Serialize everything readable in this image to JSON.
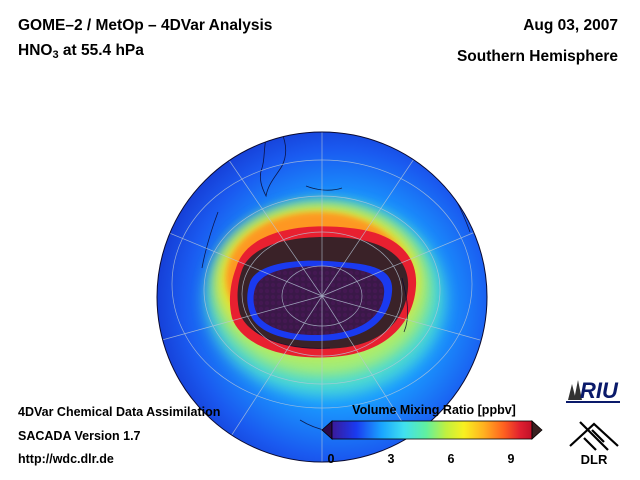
{
  "header": {
    "title_main": "GOME–2 / MetOp – 4DVar Analysis",
    "species_prefix": "HNO",
    "species_subscript": "3",
    "species_suffix": " at 55.4 hPa",
    "date": "Aug 03, 2007",
    "region": "Southern Hemisphere"
  },
  "footer": {
    "line1": "4DVar Chemical Data Assimilation",
    "line2": "SACADA Version 1.7",
    "line3": "http://wdc.dlr.de"
  },
  "colorbar": {
    "title": "Volume Mixing Ratio [ppbv]",
    "ticks": [
      "0",
      "3",
      "6",
      "9"
    ],
    "range": [
      0,
      10
    ],
    "colors": [
      "#2a0a4a",
      "#3a1a9a",
      "#1a3af0",
      "#1aa6ff",
      "#40e0f0",
      "#60f0a0",
      "#c0f040",
      "#f8f020",
      "#ffb020",
      "#ff6020",
      "#e02030",
      "#c01028",
      "#3a2020"
    ]
  },
  "logos": {
    "riu": "RIU",
    "dlr": "DLR"
  },
  "map": {
    "projection": "orthographic",
    "hemisphere": "southern",
    "background_color": "#2a70f0",
    "vortex_inner_color": "#3a1848",
    "vortex_edge_color": "#3a2228"
  }
}
